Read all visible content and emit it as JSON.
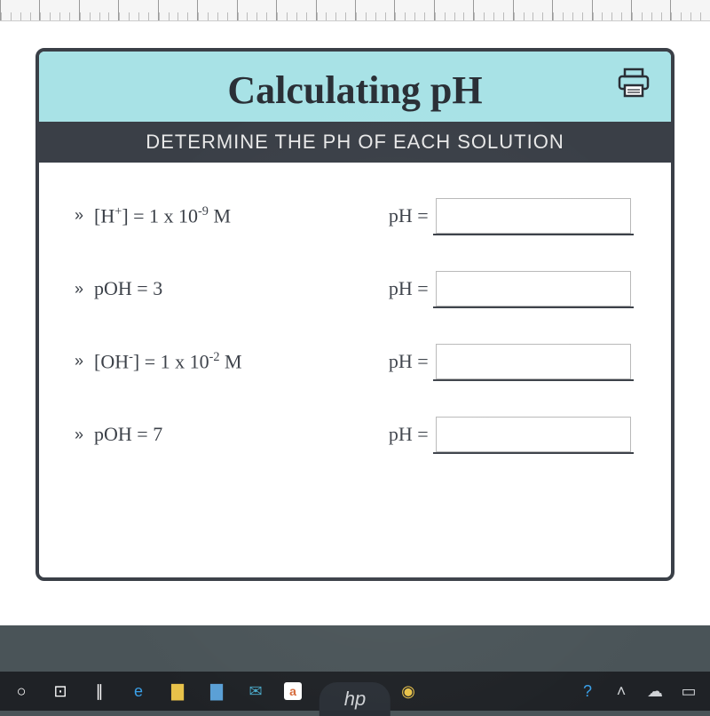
{
  "worksheet": {
    "title": "Calculating pH",
    "subtitle": "DETERMINE THE PH OF EACH SOLUTION",
    "header_bg": "#a8e2e6",
    "subheader_bg": "#3a3f47",
    "rows": [
      {
        "prompt_html": "[H<sup>+</sup>] = 1 x 10<sup>-9</sup> M",
        "ans_label": "pH =",
        "value": ""
      },
      {
        "prompt_html": "pOH = 3",
        "ans_label": "pH =",
        "value": ""
      },
      {
        "prompt_html": "[OH<sup>-</sup>] = 1 x 10<sup>-2</sup> M",
        "ans_label": "pH =",
        "value": ""
      },
      {
        "prompt_html": "pOH = 7",
        "ans_label": "pH =",
        "value": ""
      }
    ]
  },
  "taskbar": {
    "icons": [
      {
        "name": "start-circle",
        "glyph": "○",
        "color": "#ffffff"
      },
      {
        "name": "cortana",
        "glyph": "⊡",
        "color": "#ffffff"
      },
      {
        "name": "task-view",
        "glyph": "∥",
        "color": "#ffffff"
      },
      {
        "name": "edge",
        "glyph": "e",
        "color": "#3aa0e8"
      },
      {
        "name": "explorer",
        "glyph": "▇",
        "color": "#e8c24a"
      },
      {
        "name": "store",
        "glyph": "▇",
        "color": "#5aa0d6"
      },
      {
        "name": "mail",
        "glyph": "✉",
        "color": "#4aa8c8"
      },
      {
        "name": "app-a",
        "glyph": "a",
        "color": "#d66a3a"
      },
      {
        "name": "dropbox",
        "glyph": "⛬",
        "color": "#cfd2d5"
      },
      {
        "name": "bolt",
        "glyph": "ϟ",
        "color": "#cfd2d5"
      },
      {
        "name": "chrome",
        "glyph": "◉",
        "color": "#e8c24a"
      }
    ],
    "tray": [
      {
        "name": "help",
        "glyph": "?",
        "color": "#3aa0e8"
      },
      {
        "name": "chevron-up",
        "glyph": "˄",
        "color": "#cfd2d5"
      },
      {
        "name": "cloud",
        "glyph": "☁",
        "color": "#cfd2d5"
      },
      {
        "name": "battery",
        "glyph": "▭",
        "color": "#cfd2d5"
      }
    ]
  },
  "hp_label": "hp"
}
